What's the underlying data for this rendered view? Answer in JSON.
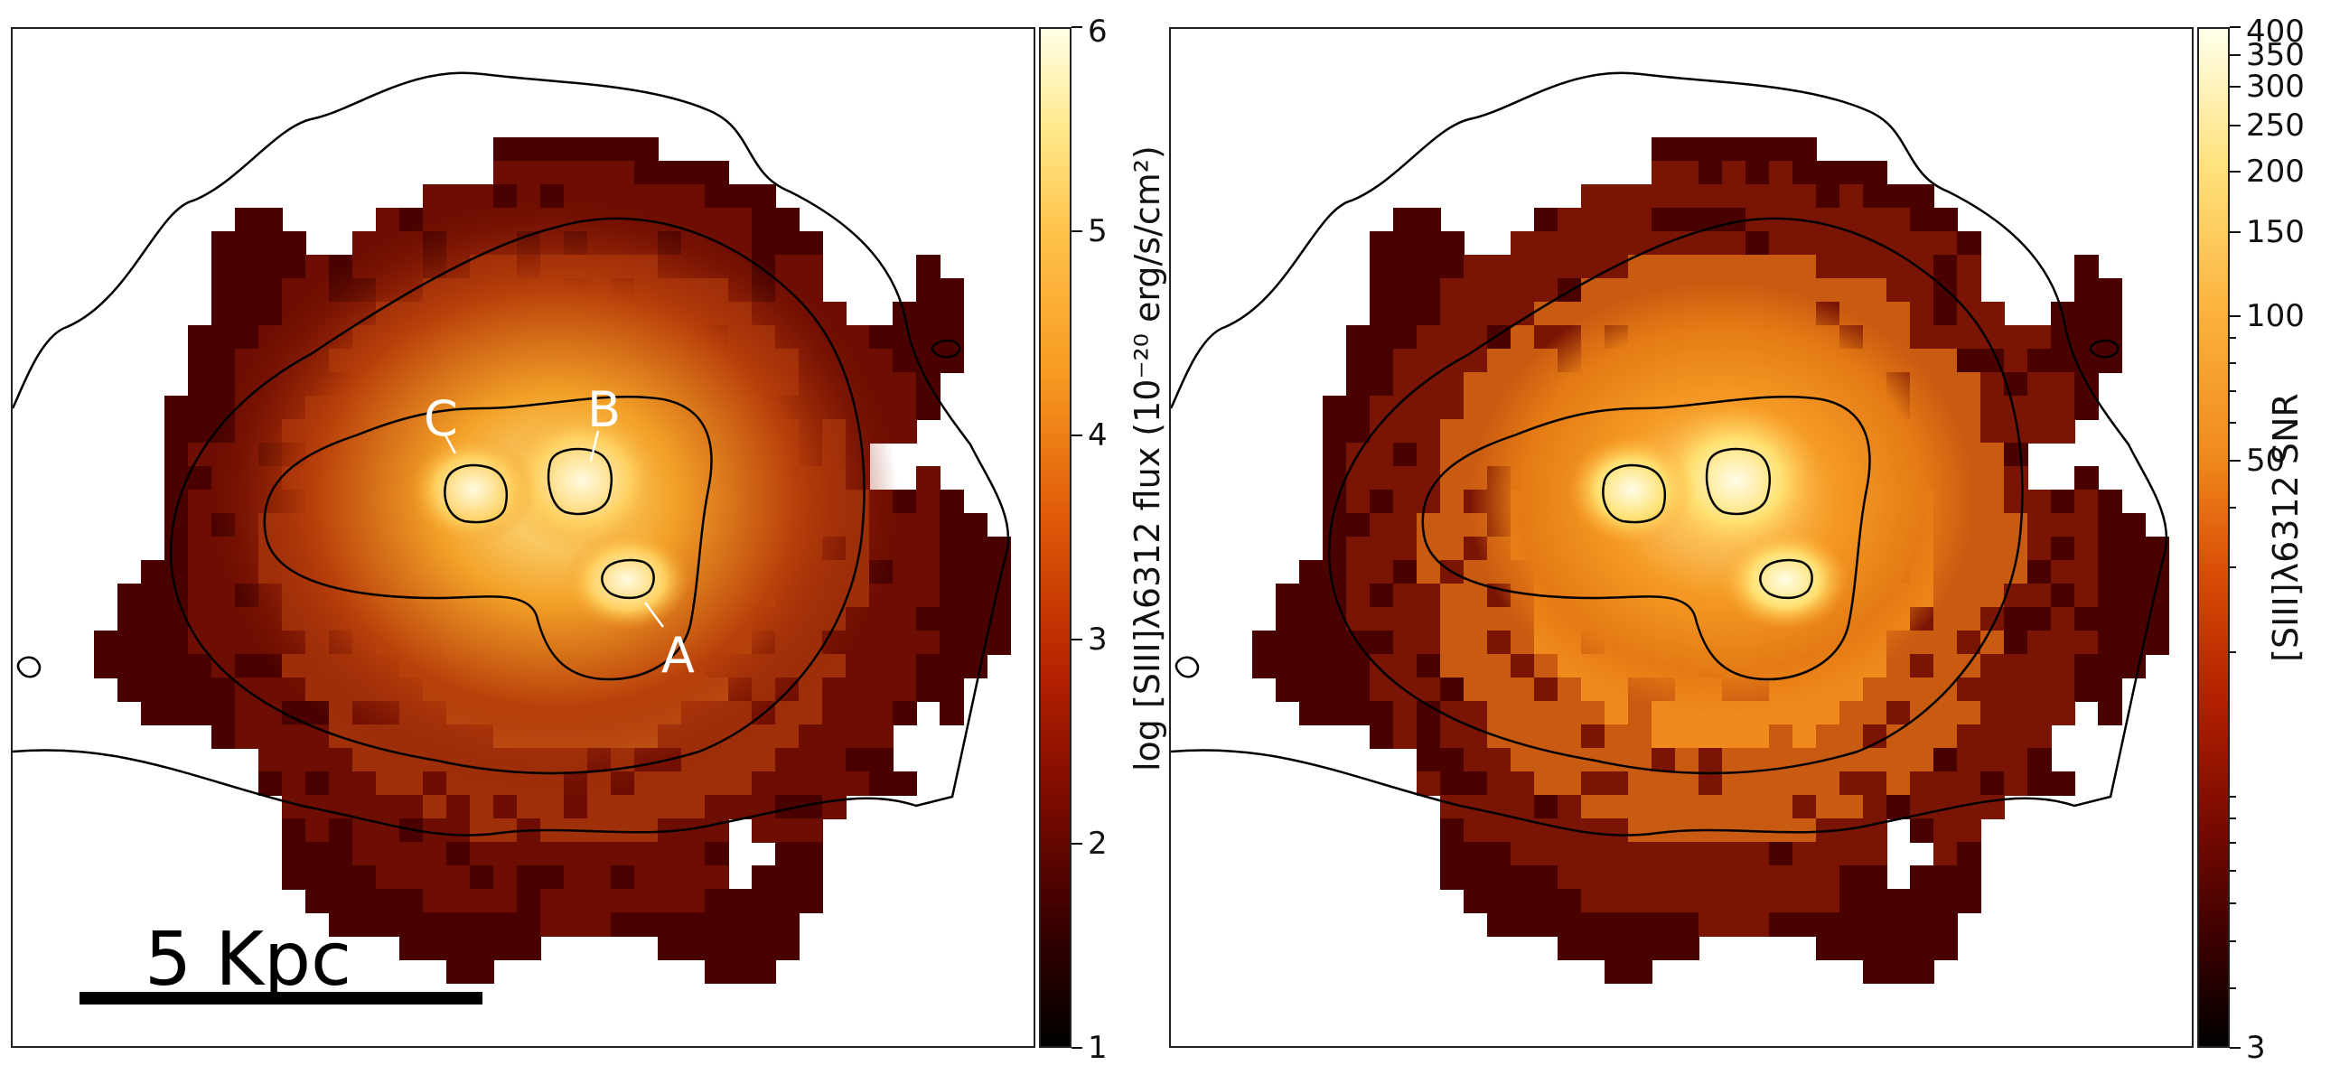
{
  "colors": {
    "map_dark": "#3a0000",
    "map_mid": "#8a1a05",
    "map_orange": "#e07010",
    "map_bright": "#ffd060",
    "map_peak": "#fffbe0",
    "contour": "#000000"
  },
  "chart_data": [
    {
      "type": "heatmap",
      "title": "",
      "panel": "left",
      "quantity": "log [SIII]λ6312 flux",
      "colorbar": {
        "label": "log [SIII]λ6312 flux (10⁻²⁰ erg/s/cm²)",
        "scale": "linear",
        "range": [
          1,
          6
        ],
        "ticks": [
          1,
          2,
          3,
          4,
          5,
          6
        ],
        "tick_labels": [
          "1",
          "2",
          "3",
          "4",
          "5",
          "6"
        ],
        "colormap": "afmhot"
      },
      "annotations": [
        {
          "label": "A",
          "target": "southern knot"
        },
        {
          "label": "B",
          "target": "central knot"
        },
        {
          "label": "C",
          "target": "western knot"
        }
      ],
      "scale_bar": {
        "label": "5 Kpc",
        "length_kpc": 5
      },
      "contours": "black isophote contours"
    },
    {
      "type": "heatmap",
      "title": "",
      "panel": "right",
      "quantity": "[SIII]λ6312 SNR",
      "colorbar": {
        "label": "[SIII]λ6312 SNR",
        "scale": "log",
        "range": [
          3,
          400
        ],
        "ticks": [
          3,
          50,
          100,
          150,
          200,
          250,
          300,
          350,
          400
        ],
        "tick_labels": [
          "3",
          "50",
          "100",
          "150",
          "200",
          "250",
          "300",
          "350",
          "400"
        ],
        "colormap": "afmhot"
      },
      "contours": "black isophote contours"
    }
  ]
}
